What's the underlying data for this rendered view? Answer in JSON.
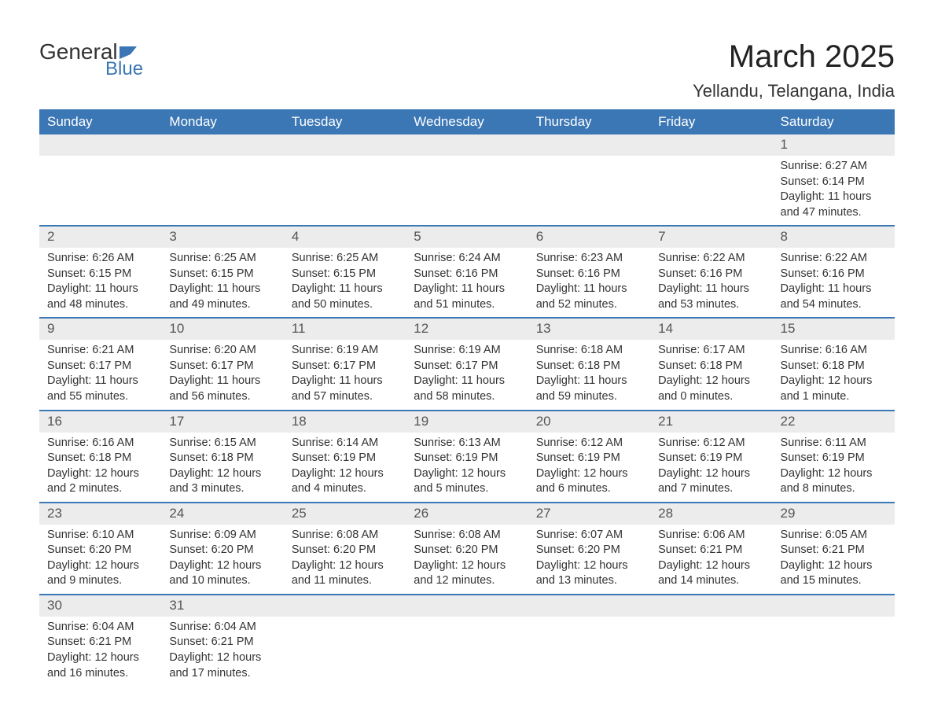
{
  "logo": {
    "text1": "General",
    "text2": "Blue",
    "accent_color": "#3b76b5"
  },
  "title": "March 2025",
  "subtitle": "Yellandu, Telangana, India",
  "colors": {
    "header_bg": "#3b76b5",
    "header_text": "#ffffff",
    "row_alt_bg": "#ececec",
    "border": "#3b76b5",
    "body_bg": "#ffffff",
    "text": "#333333"
  },
  "fonts": {
    "title_size": 40,
    "subtitle_size": 22,
    "dayhead_size": 17,
    "cell_size": 14.5
  },
  "day_headers": [
    "Sunday",
    "Monday",
    "Tuesday",
    "Wednesday",
    "Thursday",
    "Friday",
    "Saturday"
  ],
  "weeks": [
    [
      null,
      null,
      null,
      null,
      null,
      null,
      {
        "n": "1",
        "sr": "Sunrise: 6:27 AM",
        "ss": "Sunset: 6:14 PM",
        "dl": "Daylight: 11 hours and 47 minutes."
      }
    ],
    [
      {
        "n": "2",
        "sr": "Sunrise: 6:26 AM",
        "ss": "Sunset: 6:15 PM",
        "dl": "Daylight: 11 hours and 48 minutes."
      },
      {
        "n": "3",
        "sr": "Sunrise: 6:25 AM",
        "ss": "Sunset: 6:15 PM",
        "dl": "Daylight: 11 hours and 49 minutes."
      },
      {
        "n": "4",
        "sr": "Sunrise: 6:25 AM",
        "ss": "Sunset: 6:15 PM",
        "dl": "Daylight: 11 hours and 50 minutes."
      },
      {
        "n": "5",
        "sr": "Sunrise: 6:24 AM",
        "ss": "Sunset: 6:16 PM",
        "dl": "Daylight: 11 hours and 51 minutes."
      },
      {
        "n": "6",
        "sr": "Sunrise: 6:23 AM",
        "ss": "Sunset: 6:16 PM",
        "dl": "Daylight: 11 hours and 52 minutes."
      },
      {
        "n": "7",
        "sr": "Sunrise: 6:22 AM",
        "ss": "Sunset: 6:16 PM",
        "dl": "Daylight: 11 hours and 53 minutes."
      },
      {
        "n": "8",
        "sr": "Sunrise: 6:22 AM",
        "ss": "Sunset: 6:16 PM",
        "dl": "Daylight: 11 hours and 54 minutes."
      }
    ],
    [
      {
        "n": "9",
        "sr": "Sunrise: 6:21 AM",
        "ss": "Sunset: 6:17 PM",
        "dl": "Daylight: 11 hours and 55 minutes."
      },
      {
        "n": "10",
        "sr": "Sunrise: 6:20 AM",
        "ss": "Sunset: 6:17 PM",
        "dl": "Daylight: 11 hours and 56 minutes."
      },
      {
        "n": "11",
        "sr": "Sunrise: 6:19 AM",
        "ss": "Sunset: 6:17 PM",
        "dl": "Daylight: 11 hours and 57 minutes."
      },
      {
        "n": "12",
        "sr": "Sunrise: 6:19 AM",
        "ss": "Sunset: 6:17 PM",
        "dl": "Daylight: 11 hours and 58 minutes."
      },
      {
        "n": "13",
        "sr": "Sunrise: 6:18 AM",
        "ss": "Sunset: 6:18 PM",
        "dl": "Daylight: 11 hours and 59 minutes."
      },
      {
        "n": "14",
        "sr": "Sunrise: 6:17 AM",
        "ss": "Sunset: 6:18 PM",
        "dl": "Daylight: 12 hours and 0 minutes."
      },
      {
        "n": "15",
        "sr": "Sunrise: 6:16 AM",
        "ss": "Sunset: 6:18 PM",
        "dl": "Daylight: 12 hours and 1 minute."
      }
    ],
    [
      {
        "n": "16",
        "sr": "Sunrise: 6:16 AM",
        "ss": "Sunset: 6:18 PM",
        "dl": "Daylight: 12 hours and 2 minutes."
      },
      {
        "n": "17",
        "sr": "Sunrise: 6:15 AM",
        "ss": "Sunset: 6:18 PM",
        "dl": "Daylight: 12 hours and 3 minutes."
      },
      {
        "n": "18",
        "sr": "Sunrise: 6:14 AM",
        "ss": "Sunset: 6:19 PM",
        "dl": "Daylight: 12 hours and 4 minutes."
      },
      {
        "n": "19",
        "sr": "Sunrise: 6:13 AM",
        "ss": "Sunset: 6:19 PM",
        "dl": "Daylight: 12 hours and 5 minutes."
      },
      {
        "n": "20",
        "sr": "Sunrise: 6:12 AM",
        "ss": "Sunset: 6:19 PM",
        "dl": "Daylight: 12 hours and 6 minutes."
      },
      {
        "n": "21",
        "sr": "Sunrise: 6:12 AM",
        "ss": "Sunset: 6:19 PM",
        "dl": "Daylight: 12 hours and 7 minutes."
      },
      {
        "n": "22",
        "sr": "Sunrise: 6:11 AM",
        "ss": "Sunset: 6:19 PM",
        "dl": "Daylight: 12 hours and 8 minutes."
      }
    ],
    [
      {
        "n": "23",
        "sr": "Sunrise: 6:10 AM",
        "ss": "Sunset: 6:20 PM",
        "dl": "Daylight: 12 hours and 9 minutes."
      },
      {
        "n": "24",
        "sr": "Sunrise: 6:09 AM",
        "ss": "Sunset: 6:20 PM",
        "dl": "Daylight: 12 hours and 10 minutes."
      },
      {
        "n": "25",
        "sr": "Sunrise: 6:08 AM",
        "ss": "Sunset: 6:20 PM",
        "dl": "Daylight: 12 hours and 11 minutes."
      },
      {
        "n": "26",
        "sr": "Sunrise: 6:08 AM",
        "ss": "Sunset: 6:20 PM",
        "dl": "Daylight: 12 hours and 12 minutes."
      },
      {
        "n": "27",
        "sr": "Sunrise: 6:07 AM",
        "ss": "Sunset: 6:20 PM",
        "dl": "Daylight: 12 hours and 13 minutes."
      },
      {
        "n": "28",
        "sr": "Sunrise: 6:06 AM",
        "ss": "Sunset: 6:21 PM",
        "dl": "Daylight: 12 hours and 14 minutes."
      },
      {
        "n": "29",
        "sr": "Sunrise: 6:05 AM",
        "ss": "Sunset: 6:21 PM",
        "dl": "Daylight: 12 hours and 15 minutes."
      }
    ],
    [
      {
        "n": "30",
        "sr": "Sunrise: 6:04 AM",
        "ss": "Sunset: 6:21 PM",
        "dl": "Daylight: 12 hours and 16 minutes."
      },
      {
        "n": "31",
        "sr": "Sunrise: 6:04 AM",
        "ss": "Sunset: 6:21 PM",
        "dl": "Daylight: 12 hours and 17 minutes."
      },
      null,
      null,
      null,
      null,
      null
    ]
  ]
}
